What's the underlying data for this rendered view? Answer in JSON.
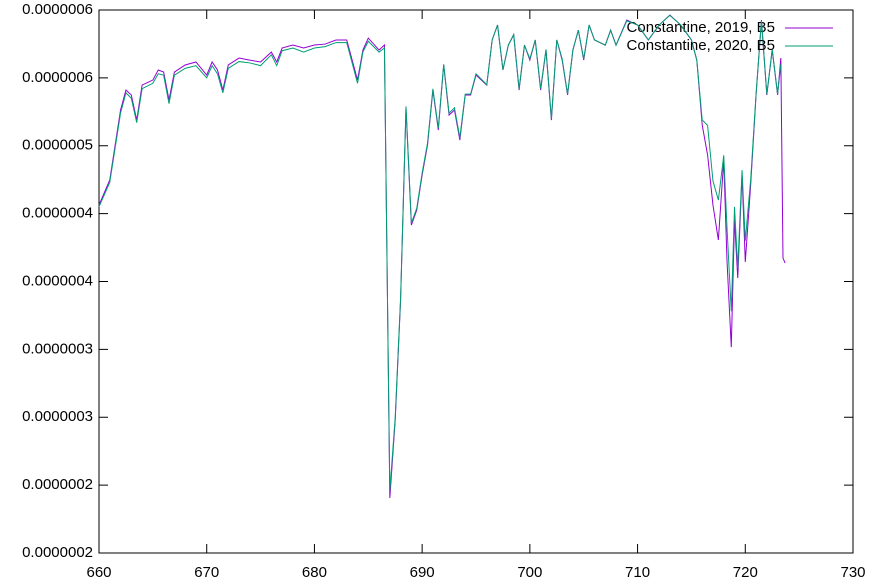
{
  "chart_data": {
    "type": "line",
    "x": [
      660,
      661,
      662,
      662.5,
      663,
      663.5,
      664,
      665,
      665.5,
      666,
      666.5,
      667,
      668,
      669,
      670,
      670.5,
      671,
      671.5,
      672,
      673,
      674,
      675,
      676,
      676.5,
      677,
      678,
      679,
      680,
      681,
      682,
      683,
      684,
      684.5,
      685,
      686,
      686.5,
      687,
      687.5,
      688,
      688.5,
      689,
      689.5,
      690,
      690.5,
      691,
      691.5,
      692,
      692.5,
      693,
      693.5,
      694,
      694.5,
      695,
      696,
      696.5,
      697,
      697.5,
      698,
      698.5,
      699,
      699.5,
      700,
      700.5,
      701,
      701.5,
      702,
      702.5,
      703,
      703.5,
      704,
      704.5,
      705,
      705.5,
      706,
      707,
      707.5,
      708,
      709,
      710,
      711,
      712,
      713,
      714,
      715,
      715.5,
      716,
      716.5,
      717,
      717.5,
      718,
      718.3,
      718.7,
      719,
      719.3,
      719.7,
      720,
      720.5,
      721,
      721.5,
      722,
      722.5,
      723,
      723.3,
      723.5,
      723.7
    ],
    "series": [
      {
        "name": "Constantine, 2019, B5",
        "color": "#9400d3",
        "values": [
          4.563e-07,
          4.748e-07,
          5.263e-07,
          5.41e-07,
          5.374e-07,
          5.189e-07,
          5.447e-07,
          5.484e-07,
          5.558e-07,
          5.543e-07,
          5.337e-07,
          5.543e-07,
          5.595e-07,
          5.617e-07,
          5.521e-07,
          5.617e-07,
          5.558e-07,
          5.41e-07,
          5.595e-07,
          5.646e-07,
          5.631e-07,
          5.617e-07,
          5.69e-07,
          5.617e-07,
          5.72e-07,
          5.742e-07,
          5.72e-07,
          5.742e-07,
          5.749e-07,
          5.779e-07,
          5.779e-07,
          5.484e-07,
          5.705e-07,
          5.793e-07,
          5.705e-07,
          5.742e-07,
          2.405e-07,
          2.98e-07,
          3.864e-07,
          5.278e-07,
          4.416e-07,
          4.527e-07,
          4.784e-07,
          5.005e-07,
          5.41e-07,
          5.116e-07,
          5.595e-07,
          5.226e-07,
          5.263e-07,
          5.042e-07,
          5.374e-07,
          5.374e-07,
          5.521e-07,
          5.447e-07,
          5.779e-07,
          5.889e-07,
          5.558e-07,
          5.742e-07,
          5.816e-07,
          5.41e-07,
          5.742e-07,
          5.631e-07,
          5.779e-07,
          5.41e-07,
          5.705e-07,
          5.189e-07,
          5.779e-07,
          5.631e-07,
          5.374e-07,
          5.705e-07,
          5.852e-07,
          5.631e-07,
          5.889e-07,
          5.779e-07,
          5.742e-07,
          5.852e-07,
          5.742e-07,
          5.926e-07,
          5.889e-07,
          5.779e-07,
          5.889e-07,
          5.963e-07,
          5.889e-07,
          5.779e-07,
          5.631e-07,
          5.153e-07,
          4.932e-07,
          4.563e-07,
          4.306e-07,
          4.895e-07,
          4.158e-07,
          3.517e-07,
          4.453e-07,
          4.026e-07,
          4.784e-07,
          4.144e-07,
          4.711e-07,
          5.374e-07,
          5.926e-07,
          5.374e-07,
          5.705e-07,
          5.374e-07,
          5.646e-07,
          4.173e-07,
          4.136e-07
        ]
      },
      {
        "name": "Constantine, 2020, B5",
        "color": "#009e73",
        "values": [
          4.55e-07,
          4.73e-07,
          5.24e-07,
          5.39e-07,
          5.35e-07,
          5.17e-07,
          5.42e-07,
          5.46e-07,
          5.53e-07,
          5.52e-07,
          5.31e-07,
          5.52e-07,
          5.57e-07,
          5.59e-07,
          5.5e-07,
          5.59e-07,
          5.53e-07,
          5.39e-07,
          5.57e-07,
          5.62e-07,
          5.61e-07,
          5.59e-07,
          5.67e-07,
          5.59e-07,
          5.7e-07,
          5.72e-07,
          5.69e-07,
          5.72e-07,
          5.73e-07,
          5.76e-07,
          5.76e-07,
          5.46e-07,
          5.69e-07,
          5.77e-07,
          5.69e-07,
          5.72e-07,
          2.46e-07,
          3e-07,
          3.88e-07,
          5.29e-07,
          4.43e-07,
          4.54e-07,
          4.8e-07,
          5.02e-07,
          5.42e-07,
          5.13e-07,
          5.6e-07,
          5.24e-07,
          5.28e-07,
          5.06e-07,
          5.38e-07,
          5.38e-07,
          5.53e-07,
          5.45e-07,
          5.78e-07,
          5.89e-07,
          5.56e-07,
          5.74e-07,
          5.82e-07,
          5.42e-07,
          5.74e-07,
          5.64e-07,
          5.78e-07,
          5.42e-07,
          5.71e-07,
          5.2e-07,
          5.78e-07,
          5.64e-07,
          5.38e-07,
          5.71e-07,
          5.85e-07,
          5.64e-07,
          5.89e-07,
          5.78e-07,
          5.74e-07,
          5.85e-07,
          5.74e-07,
          5.92e-07,
          5.89e-07,
          5.78e-07,
          5.89e-07,
          5.96e-07,
          5.89e-07,
          5.78e-07,
          5.63e-07,
          5.19e-07,
          5.15e-07,
          4.74e-07,
          4.6e-07,
          4.93e-07,
          4.4e-07,
          3.78e-07,
          4.55e-07,
          4.1e-07,
          4.82e-07,
          4.3e-07,
          4.75e-07,
          5.38e-07,
          5.92e-07,
          5.38e-07,
          5.71e-07,
          5.38e-07,
          5.6e-07,
          null,
          null
        ]
      }
    ],
    "xlim": [
      660,
      730
    ],
    "xticks": [
      660,
      670,
      680,
      690,
      700,
      710,
      720,
      730
    ],
    "ylim": [
      2e-07,
      6e-07
    ],
    "yticks": [
      {
        "value": 2e-07,
        "label": "0.0000002"
      },
      {
        "value": 2.5e-07,
        "label": "0.0000002"
      },
      {
        "value": 3e-07,
        "label": "0.0000003"
      },
      {
        "value": 3.5e-07,
        "label": "0.0000003"
      },
      {
        "value": 4e-07,
        "label": "0.0000004"
      },
      {
        "value": 4.5e-07,
        "label": "0.0000004"
      },
      {
        "value": 5e-07,
        "label": "0.0000005"
      },
      {
        "value": 5.5e-07,
        "label": "0.0000006"
      },
      {
        "value": 6e-07,
        "label": "0.0000006"
      }
    ],
    "legend": "top-right"
  }
}
